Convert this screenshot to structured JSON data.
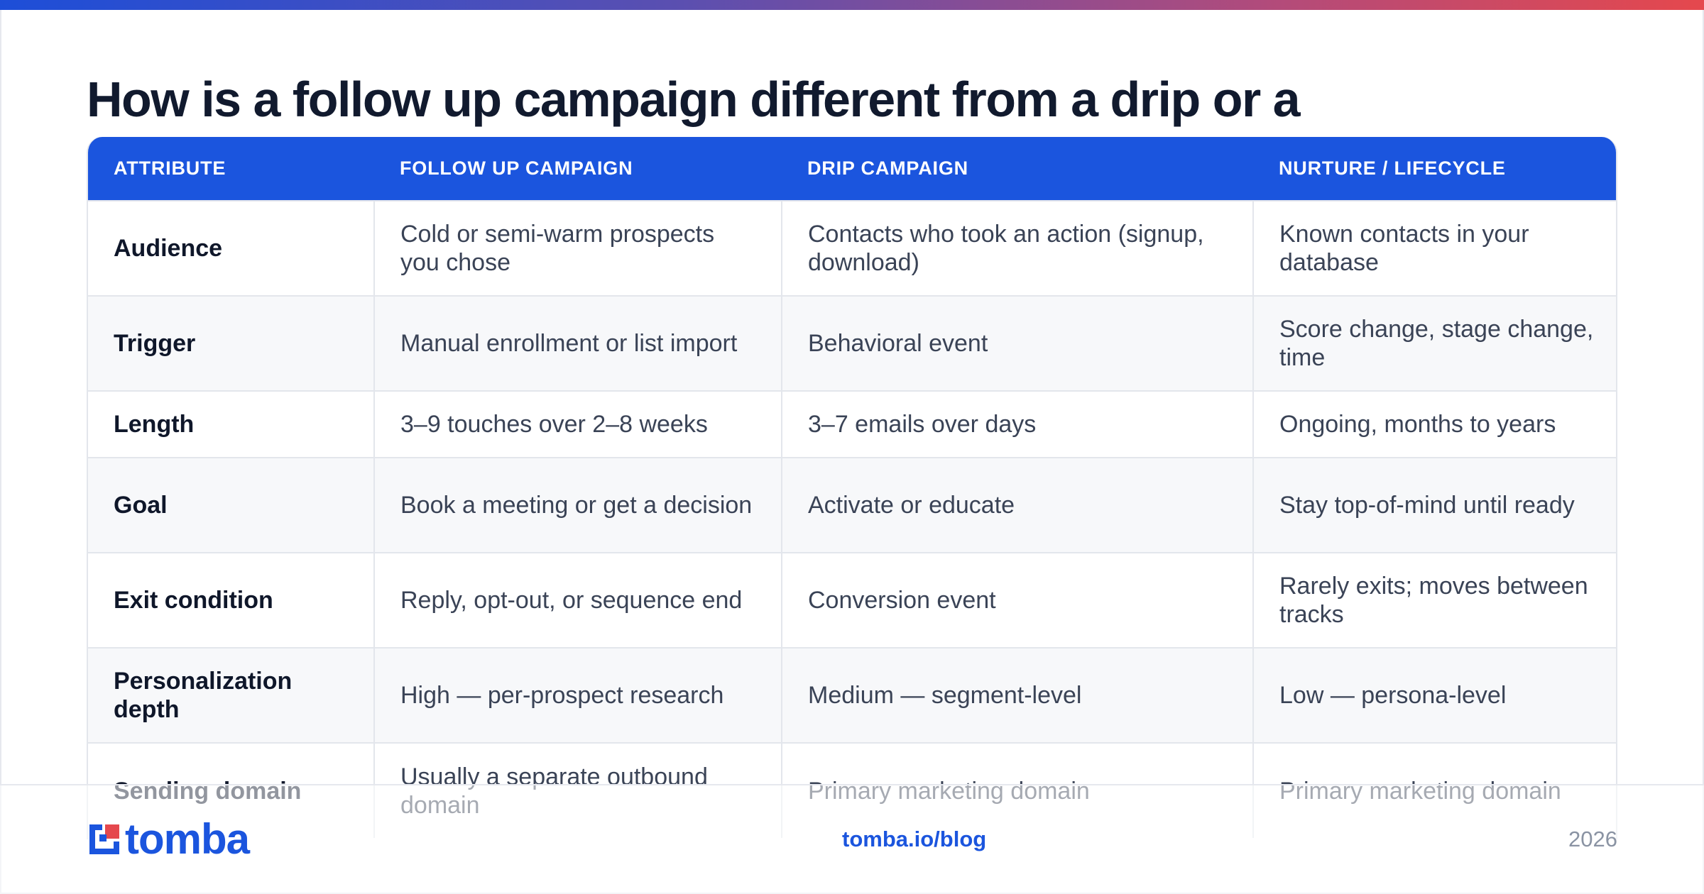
{
  "title": "How is a follow up campaign different from a drip or a",
  "table": {
    "headers": [
      "ATTRIBUTE",
      "FOLLOW UP CAMPAIGN",
      "DRIP CAMPAIGN",
      "NURTURE / LIFECYCLE"
    ],
    "rows": [
      [
        "Audience",
        "Cold or semi-warm prospects you chose",
        "Contacts who took an action (signup, download)",
        "Known contacts in your database"
      ],
      [
        "Trigger",
        "Manual enrollment or list import",
        "Behavioral event",
        "Score change, stage change, time"
      ],
      [
        "Length",
        "3–9 touches over 2–8 weeks",
        "3–7 emails over days",
        "Ongoing, months to years"
      ],
      [
        "Goal",
        "Book a meeting or get a decision",
        "Activate or educate",
        "Stay top-of-mind until ready"
      ],
      [
        "Exit condition",
        "Reply, opt-out, or sequence end",
        "Conversion event",
        "Rarely exits; moves between tracks"
      ],
      [
        "Personalization depth",
        "High — per-prospect research",
        "Medium — segment-level",
        "Low — persona-level"
      ],
      [
        "Sending domain",
        "Usually a separate outbound domain",
        "Primary marketing domain",
        "Primary marketing domain"
      ]
    ]
  },
  "footer": {
    "brand": "tomba",
    "link": "tomba.io/blog",
    "year": "2026"
  },
  "colors": {
    "accent": "#1b55de",
    "title": "#111a2e",
    "gradient_start": "#1d4ed8",
    "gradient_end": "#e5484d"
  },
  "icons": [
    "tomba-logo-icon"
  ]
}
